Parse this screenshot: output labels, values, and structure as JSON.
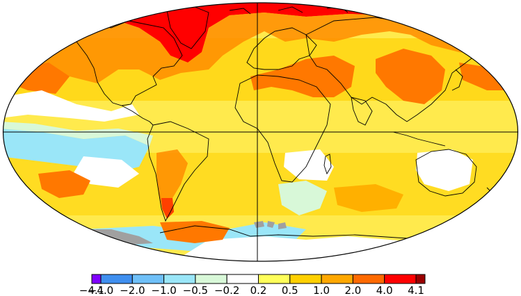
{
  "legend": {
    "colors": [
      "#8000ff",
      "#3f8fef",
      "#6fc0f8",
      "#9ae6f8",
      "#d8f8d8",
      "#ffffff",
      "#ffff5a",
      "#ffd000",
      "#ffa800",
      "#ff6a00",
      "#ff0000",
      "#9a0000"
    ],
    "ticks": [
      "−4.1",
      "−4.0",
      "−2.0",
      "−1.0",
      "−0.5",
      "−0.2",
      "0.2",
      "0.5",
      "1.0",
      "2.0",
      "4.0",
      "4.1"
    ]
  },
  "palette": {
    "ocean_base": "#fff27a",
    "warm_moderate": "#ffd000",
    "warm_strong": "#ffa800",
    "hot": "#ff6a00",
    "very_hot": "#ff0000",
    "cool_light": "#d8f8d8",
    "cool": "#9ae6f8",
    "neutral": "#ffffff",
    "missing": "#a0a0a0",
    "coast": "#000000"
  }
}
